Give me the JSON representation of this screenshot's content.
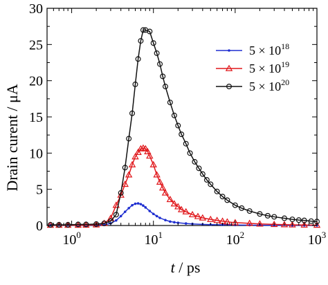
{
  "chart_data": {
    "type": "line",
    "xscale": "log",
    "xlim": [
      0.5,
      1000
    ],
    "ylim": [
      0,
      30
    ],
    "xlabel_var": "t",
    "xlabel_sep": " / ",
    "xlabel_unit": "ps",
    "ylabel": "Drain curent / μA",
    "xticks": [
      {
        "value": 1,
        "base": "10",
        "exp": "0"
      },
      {
        "value": 10,
        "base": "10",
        "exp": "1"
      },
      {
        "value": 100,
        "base": "10",
        "exp": "2"
      },
      {
        "value": 1000,
        "base": "10",
        "exp": "3"
      }
    ],
    "yticks": [
      0,
      5,
      10,
      15,
      20,
      25,
      30
    ],
    "grid": false,
    "legend_position": "top-right",
    "series": [
      {
        "label_base": "5 × 10",
        "label_exp": "18",
        "color": "#1f2fd0",
        "marker": "dot",
        "x": [
          0.55,
          0.7,
          0.9,
          1.2,
          1.5,
          2,
          2.5,
          3,
          3.5,
          4,
          4.5,
          5,
          5.5,
          6,
          6.5,
          7,
          7.5,
          8,
          9,
          10,
          11,
          12,
          14,
          16,
          18,
          20,
          25,
          30,
          40,
          50,
          70,
          100,
          150,
          200,
          300,
          500,
          700,
          1000
        ],
        "y": [
          0.05,
          0.05,
          0.05,
          0.05,
          0.05,
          0.06,
          0.1,
          0.3,
          0.7,
          1.3,
          1.9,
          2.4,
          2.8,
          3.0,
          3.05,
          2.95,
          2.75,
          2.5,
          2.0,
          1.6,
          1.3,
          1.05,
          0.75,
          0.55,
          0.45,
          0.38,
          0.28,
          0.22,
          0.15,
          0.12,
          0.09,
          0.07,
          0.05,
          0.04,
          0.03,
          0.02,
          0.02,
          0.01
        ]
      },
      {
        "label_base": "5 × 10",
        "label_exp": "19",
        "color": "#e0161a",
        "marker": "triangle",
        "x": [
          0.55,
          0.7,
          0.9,
          1.2,
          1.5,
          2,
          2.5,
          3,
          3.5,
          4,
          4.5,
          5,
          5.5,
          6,
          6.5,
          7,
          7.5,
          8,
          8.5,
          9,
          10,
          11,
          12,
          13,
          14,
          16,
          18,
          20,
          22,
          25,
          30,
          35,
          40,
          50,
          60,
          70,
          80,
          100,
          150,
          200,
          300,
          400,
          500,
          700,
          1000
        ],
        "y": [
          0.05,
          0.05,
          0.05,
          0.05,
          0.06,
          0.1,
          0.3,
          1.0,
          2.8,
          4.2,
          5.7,
          7.0,
          8.4,
          9.5,
          10.1,
          10.6,
          10.7,
          10.6,
          10.2,
          9.6,
          8.4,
          7.0,
          6.0,
          5.2,
          4.5,
          3.6,
          3.0,
          2.6,
          2.2,
          1.9,
          1.5,
          1.25,
          1.05,
          0.85,
          0.7,
          0.6,
          0.5,
          0.4,
          0.3,
          0.22,
          0.15,
          0.12,
          0.1,
          0.07,
          0.05
        ]
      },
      {
        "label_base": "5 × 10",
        "label_exp": "20",
        "color": "#111111",
        "marker": "circle",
        "x": [
          0.55,
          0.7,
          0.9,
          1.2,
          1.5,
          2,
          2.5,
          3,
          3.5,
          4,
          4.5,
          5,
          5.5,
          6,
          6.5,
          7,
          7.5,
          8,
          9,
          10,
          11,
          12,
          13,
          14,
          16,
          18,
          20,
          22,
          25,
          28,
          32,
          36,
          40,
          45,
          50,
          60,
          70,
          80,
          100,
          120,
          150,
          200,
          250,
          300,
          400,
          500,
          600,
          700,
          850,
          1000
        ],
        "y": [
          0.1,
          0.1,
          0.1,
          0.15,
          0.15,
          0.2,
          0.3,
          0.6,
          1.5,
          4.5,
          8.0,
          12.0,
          15.5,
          19.5,
          23.0,
          25.5,
          27.0,
          27.0,
          26.8,
          25.2,
          23.8,
          22.3,
          20.6,
          19.2,
          17.0,
          15.2,
          13.8,
          12.6,
          11.3,
          10.0,
          8.8,
          7.9,
          7.1,
          6.3,
          5.7,
          4.7,
          4.0,
          3.5,
          2.8,
          2.4,
          2.0,
          1.6,
          1.35,
          1.2,
          1.0,
          0.85,
          0.75,
          0.7,
          0.6,
          0.55
        ]
      }
    ]
  }
}
